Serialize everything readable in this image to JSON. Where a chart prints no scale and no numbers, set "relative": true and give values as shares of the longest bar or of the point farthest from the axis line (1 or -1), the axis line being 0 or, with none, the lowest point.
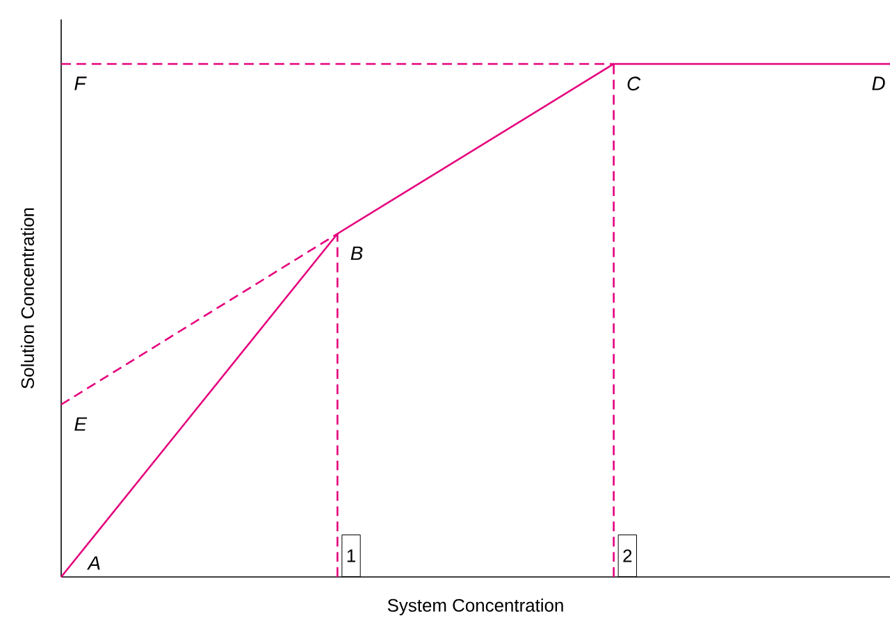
{
  "chart_data": {
    "type": "line",
    "relative": true,
    "xlabel": "System Concentration",
    "ylabel": "Solution Concentration",
    "tick_labels": false,
    "categories": [
      null,
      null,
      null,
      null
    ],
    "series": [
      {
        "color": "#e5007d",
        "line_style": "solid",
        "values": [
          0,
          0.669,
          1,
          1
        ]
      },
      {
        "color": "#e5007d",
        "line_style": "dashed",
        "values": [
          0.336,
          0.669,
          null,
          null
        ]
      },
      {
        "color": "#e5007d",
        "line_style": "dashed",
        "values": [
          1,
          1,
          1,
          null
        ]
      }
    ],
    "annotations": [
      "A",
      "B",
      "C",
      "D",
      "E",
      "F",
      "1",
      "2"
    ]
  }
}
